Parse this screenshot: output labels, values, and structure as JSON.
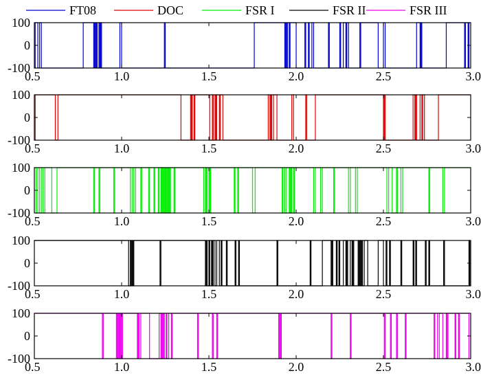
{
  "chart_data": {
    "type": "line",
    "legend": {
      "placement": "top",
      "entries": [
        {
          "label": "FT08",
          "color": "#0000cc"
        },
        {
          "label": "DOC",
          "color": "#e00000"
        },
        {
          "label": "FSR I",
          "color": "#00ee00"
        },
        {
          "label": "FSR II",
          "color": "#000000"
        },
        {
          "label": "FSR III",
          "color": "#ee00ee"
        }
      ]
    },
    "x_axis": {
      "range": [
        0.5,
        3.0
      ],
      "ticks": [
        0.5,
        1.0,
        1.5,
        2.0,
        2.5,
        3.0
      ],
      "tick_labels": [
        "0.5",
        "1.0",
        "1.5",
        "2.0",
        "2.5",
        "3.0"
      ]
    },
    "y_axis": {
      "range": [
        -100,
        100
      ],
      "ticks": [
        100,
        0,
        -100
      ],
      "tick_labels": [
        "100",
        "0",
        "-100"
      ]
    },
    "grid": false,
    "series": [
      {
        "name": "FT08",
        "color": "#0000cc",
        "start": 0.5,
        "end": 3.0,
        "initial": -100,
        "switches": [
          0.505,
          0.52,
          0.53,
          0.54,
          0.78,
          0.84,
          0.845,
          0.85,
          0.855,
          0.86,
          0.87,
          0.875,
          0.88,
          0.885,
          0.99,
          1.0,
          1.245,
          1.25,
          1.76,
          1.935,
          1.94,
          1.945,
          1.95,
          1.96,
          1.965,
          2.0,
          2.05,
          2.055,
          2.07,
          2.075,
          2.09,
          2.1,
          2.185,
          2.19,
          2.25,
          2.255,
          2.27,
          2.285,
          2.29,
          2.3,
          2.365,
          2.37,
          2.37,
          2.47,
          2.5,
          2.51,
          2.69,
          2.71,
          2.715,
          2.72,
          2.86,
          2.965,
          2.97,
          2.985,
          2.99
        ]
      },
      {
        "name": "DOC",
        "color": "#e00000",
        "start": 0.5,
        "end": 3.0,
        "initial": -100,
        "switches": [
          0.505,
          0.62,
          0.635,
          1.34,
          1.395,
          1.4,
          1.405,
          1.415,
          1.42,
          1.505,
          1.52,
          1.525,
          1.535,
          1.54,
          1.545,
          1.56,
          1.565,
          1.58,
          1.84,
          1.85,
          1.855,
          1.86,
          1.87,
          1.89,
          1.975,
          1.985,
          2.055,
          2.06,
          2.11,
          2.5,
          2.505,
          2.51,
          2.67,
          2.68,
          2.685,
          2.69,
          2.71,
          2.72,
          2.725,
          2.735,
          2.815
        ]
      },
      {
        "name": "FSR I",
        "color": "#00ee00",
        "start": 0.5,
        "end": 3.0,
        "initial": 100,
        "switches": [
          0.51,
          0.52,
          0.53,
          0.54,
          0.55,
          0.56,
          0.6,
          0.63,
          0.84,
          0.845,
          0.87,
          0.875,
          0.955,
          0.96,
          1.05,
          1.06,
          1.07,
          1.08,
          1.11,
          1.115,
          1.155,
          1.16,
          1.185,
          1.19,
          1.21,
          1.215,
          1.225,
          1.23,
          1.235,
          1.24,
          1.245,
          1.25,
          1.255,
          1.26,
          1.265,
          1.27,
          1.275,
          1.28,
          1.3,
          1.305,
          1.47,
          1.48,
          1.485,
          1.49,
          1.49,
          1.5,
          1.505,
          1.51,
          1.645,
          1.65,
          1.665,
          1.67,
          1.75,
          1.765,
          1.92,
          1.925,
          1.935,
          1.945,
          1.96,
          1.965,
          1.97,
          1.975,
          1.985,
          1.99,
          2.1,
          2.11,
          2.14,
          2.15,
          2.215,
          2.22,
          2.3,
          2.31,
          2.34,
          2.35,
          2.52,
          2.53,
          2.55,
          2.575,
          2.575,
          2.58,
          2.6,
          2.61,
          2.76,
          2.765,
          2.84,
          2.85
        ]
      },
      {
        "name": "FSR II",
        "color": "#000000",
        "start": 0.5,
        "end": 3.0,
        "initial": 100,
        "switches": [
          1.04,
          1.05,
          1.055,
          1.06,
          1.065,
          1.07,
          1.22,
          1.225,
          1.48,
          1.485,
          1.49,
          1.5,
          1.505,
          1.515,
          1.52,
          1.525,
          1.535,
          1.545,
          1.56,
          1.57,
          1.575,
          1.6,
          1.605,
          1.65,
          1.655,
          1.67,
          1.675,
          1.89,
          1.895,
          2.08,
          2.085,
          2.15,
          2.2,
          2.205,
          2.21,
          2.23,
          2.235,
          2.245,
          2.25,
          2.27,
          2.285,
          2.29,
          2.295,
          2.31,
          2.32,
          2.325,
          2.33,
          2.355,
          2.36,
          2.365,
          2.37,
          2.375,
          2.38,
          2.39,
          2.41,
          2.47,
          2.5,
          2.515,
          2.52,
          2.535,
          2.54,
          2.6,
          2.605,
          2.67,
          2.675,
          2.685,
          2.69,
          2.74,
          2.745,
          2.76,
          2.765,
          2.845,
          2.85,
          2.99,
          2.995
        ]
      },
      {
        "name": "FSR III",
        "color": "#ee00ee",
        "start": 0.5,
        "end": 3.0,
        "initial": 100,
        "switches": [
          0.89,
          0.895,
          0.97,
          0.975,
          0.98,
          0.985,
          0.99,
          0.995,
          1.0,
          1.005,
          1.09,
          1.095,
          1.1,
          1.11,
          1.16,
          1.215,
          1.225,
          1.23,
          1.235,
          1.24,
          1.245,
          1.255,
          1.26,
          1.27,
          1.285,
          1.29,
          1.435,
          1.44,
          1.52,
          1.525,
          1.545,
          1.55,
          1.9,
          1.905,
          1.91,
          1.915,
          2.2,
          2.205,
          2.31,
          2.315,
          2.505,
          2.51,
          2.54,
          2.545,
          2.575,
          2.58,
          2.625,
          2.63,
          2.79,
          2.795,
          2.81,
          2.82,
          2.84,
          2.86,
          2.865,
          2.87,
          2.91,
          2.915,
          2.93,
          2.935,
          2.99
        ]
      }
    ]
  }
}
